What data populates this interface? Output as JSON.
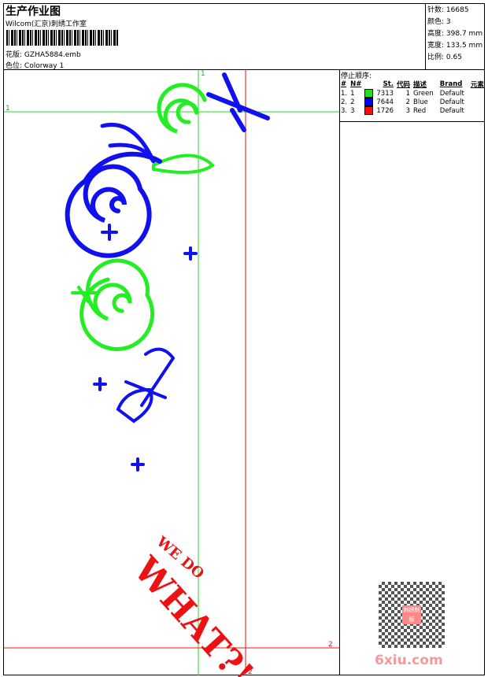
{
  "header": {
    "title": "生产作业图",
    "company": "Wilcom(汇京)刺绣工作室",
    "design_label": "花版:",
    "design_value": "GZHA5884.emb",
    "colorway_label": "色位:",
    "colorway_value": "Colorway 1"
  },
  "stats": [
    {
      "label": "针数:",
      "value": "16685"
    },
    {
      "label": "颜色:",
      "value": "3"
    },
    {
      "label": "高度:",
      "value": "398.7 mm"
    },
    {
      "label": "宽度:",
      "value": "133.5 mm"
    },
    {
      "label": "比例:",
      "value": "0.65"
    }
  ],
  "stop_sequence": {
    "title": "停止顺序:",
    "columns": [
      "#",
      "N#",
      "St.",
      "代码",
      "描述",
      "Brand",
      "元素"
    ],
    "rows": [
      {
        "num": "1.",
        "n": "1",
        "color": "#22dd22",
        "st": "7313",
        "code": "1",
        "desc": "Green",
        "brand": "Default"
      },
      {
        "num": "2.",
        "n": "2",
        "color": "#0000ee",
        "st": "7644",
        "code": "2",
        "desc": "Blue",
        "brand": "Default"
      },
      {
        "num": "3.",
        "n": "3",
        "color": "#ee1111",
        "st": "1726",
        "code": "3",
        "desc": "Red",
        "brand": "Default"
      }
    ]
  },
  "guides": {
    "start_label_x": "1",
    "start_label_y": "1",
    "end_label_x": "2",
    "end_label_y": "2"
  },
  "embroidery_text": {
    "line1": "WE DO",
    "line2": "WHAT?!"
  },
  "watermark": {
    "site": "6xiu.com",
    "seal": "刺绣制版"
  }
}
